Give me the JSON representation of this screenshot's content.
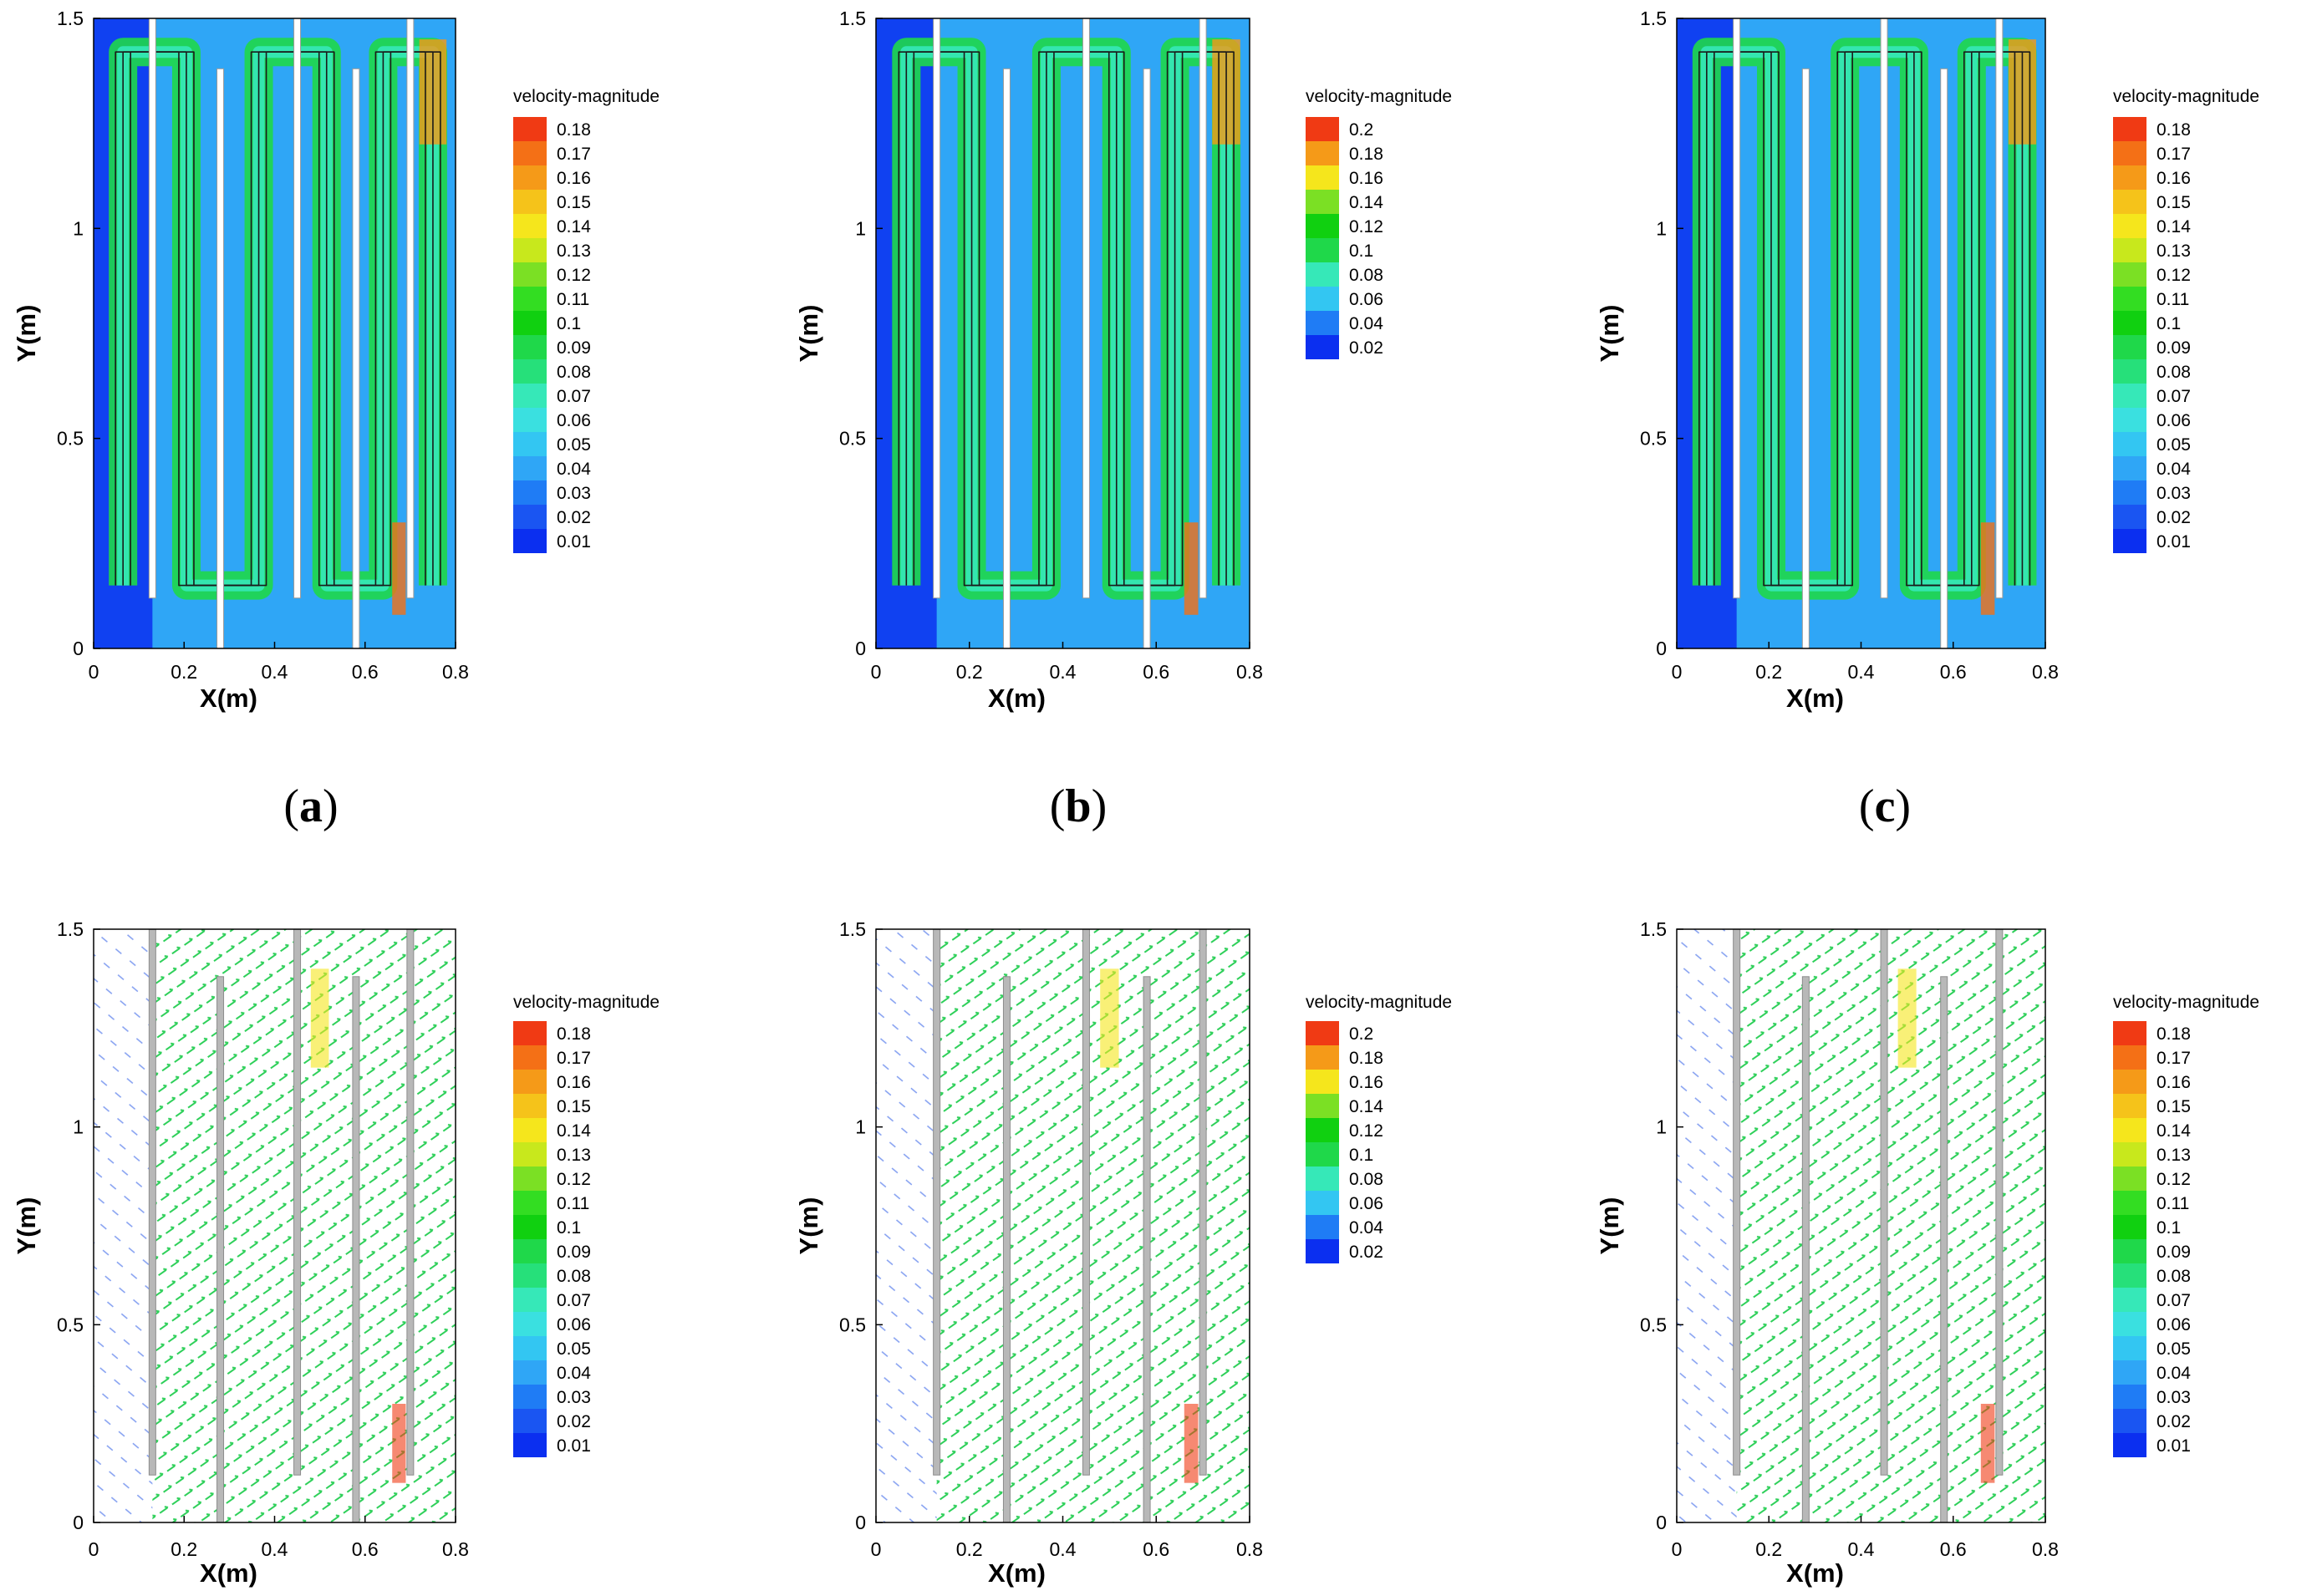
{
  "colors": {
    "scale": [
      "#0b2ff0",
      "#1a55f2",
      "#1f7cf5",
      "#2fa6f6",
      "#33c6f2",
      "#3ae0e0",
      "#36e8b8",
      "#26e07a",
      "#1fd84a",
      "#10d010",
      "#33dd22",
      "#7be024",
      "#c8e81c",
      "#f5e61c",
      "#f5c31a",
      "#f59a18",
      "#f47016",
      "#f03a14"
    ],
    "grey_wall": "#b8b8b8",
    "streamline": "#1a1a1a"
  },
  "chart_data": [
    {
      "id": "a",
      "type": "heatmap",
      "subtype": "contour-with-streamlines",
      "row": 0,
      "col": 0,
      "xlabel": "X(m)",
      "ylabel": "Y(m)",
      "xlim": [
        0,
        0.8
      ],
      "ylim": [
        0,
        1.5
      ],
      "xticks": [
        "0",
        "0.2",
        "0.4",
        "0.6",
        "0.8"
      ],
      "yticks": [
        "0",
        "0.5",
        "1",
        "1.5"
      ],
      "baffles": [
        0.13,
        0.28,
        0.45,
        0.58,
        0.7
      ],
      "legend": {
        "title": "velocity-magnitude",
        "levels": [
          "0.18",
          "0.17",
          "0.16",
          "0.15",
          "0.14",
          "0.13",
          "0.12",
          "0.11",
          "0.1",
          "0.09",
          "0.08",
          "0.07",
          "0.06",
          "0.05",
          "0.04",
          "0.03",
          "0.02",
          "0.01"
        ]
      }
    },
    {
      "id": "b",
      "type": "heatmap",
      "subtype": "contour-with-streamlines",
      "row": 0,
      "col": 1,
      "xlabel": "X(m)",
      "ylabel": "Y(m)",
      "xlim": [
        0,
        0.8
      ],
      "ylim": [
        0,
        1.5
      ],
      "xticks": [
        "0",
        "0.2",
        "0.4",
        "0.6",
        "0.8"
      ],
      "yticks": [
        "0",
        "0.5",
        "1",
        "1.5"
      ],
      "baffles": [
        0.13,
        0.28,
        0.45,
        0.58,
        0.7
      ],
      "legend": {
        "title": "velocity-magnitude",
        "levels": [
          "0.2",
          "0.18",
          "0.16",
          "0.14",
          "0.12",
          "0.1",
          "0.08",
          "0.06",
          "0.04",
          "0.02"
        ]
      }
    },
    {
      "id": "c",
      "type": "heatmap",
      "subtype": "contour-with-streamlines",
      "row": 0,
      "col": 2,
      "xlabel": "X(m)",
      "ylabel": "Y(m)",
      "xlim": [
        0,
        0.8
      ],
      "ylim": [
        0,
        1.5
      ],
      "xticks": [
        "0",
        "0.2",
        "0.4",
        "0.6",
        "0.8"
      ],
      "yticks": [
        "0",
        "0.5",
        "1",
        "1.5"
      ],
      "baffles": [
        0.13,
        0.28,
        0.45,
        0.58,
        0.7
      ],
      "legend": {
        "title": "velocity-magnitude",
        "levels": [
          "0.18",
          "0.17",
          "0.16",
          "0.15",
          "0.14",
          "0.13",
          "0.12",
          "0.11",
          "0.1",
          "0.09",
          "0.08",
          "0.07",
          "0.06",
          "0.05",
          "0.04",
          "0.03",
          "0.02",
          "0.01"
        ]
      }
    },
    {
      "id": "d",
      "type": "heatmap",
      "subtype": "velocity-vectors",
      "row": 1,
      "col": 0,
      "xlabel": "X(m)",
      "ylabel": "Y(m)",
      "xlim": [
        0,
        0.8
      ],
      "ylim": [
        0,
        1.5
      ],
      "xticks": [
        "0",
        "0.2",
        "0.4",
        "0.6",
        "0.8"
      ],
      "yticks": [
        "0",
        "0.5",
        "1",
        "1.5"
      ],
      "baffles": [
        0.13,
        0.28,
        0.45,
        0.58,
        0.7
      ],
      "legend": {
        "title": "velocity-magnitude",
        "levels": [
          "0.18",
          "0.17",
          "0.16",
          "0.15",
          "0.14",
          "0.13",
          "0.12",
          "0.11",
          "0.1",
          "0.09",
          "0.08",
          "0.07",
          "0.06",
          "0.05",
          "0.04",
          "0.03",
          "0.02",
          "0.01"
        ]
      }
    },
    {
      "id": "e",
      "type": "heatmap",
      "subtype": "velocity-vectors",
      "row": 1,
      "col": 1,
      "xlabel": "X(m)",
      "ylabel": "Y(m)",
      "xlim": [
        0,
        0.8
      ],
      "ylim": [
        0,
        1.5
      ],
      "xticks": [
        "0",
        "0.2",
        "0.4",
        "0.6",
        "0.8"
      ],
      "yticks": [
        "0",
        "0.5",
        "1",
        "1.5"
      ],
      "baffles": [
        0.13,
        0.28,
        0.45,
        0.58,
        0.7
      ],
      "legend": {
        "title": "velocity-magnitude",
        "levels": [
          "0.2",
          "0.18",
          "0.16",
          "0.14",
          "0.12",
          "0.1",
          "0.08",
          "0.06",
          "0.04",
          "0.02"
        ]
      }
    },
    {
      "id": "f",
      "type": "heatmap",
      "subtype": "velocity-vectors",
      "row": 1,
      "col": 2,
      "xlabel": "X(m)",
      "ylabel": "Y(m)",
      "xlim": [
        0,
        0.8
      ],
      "ylim": [
        0,
        1.5
      ],
      "xticks": [
        "0",
        "0.2",
        "0.4",
        "0.6",
        "0.8"
      ],
      "yticks": [
        "0",
        "0.5",
        "1",
        "1.5"
      ],
      "baffles": [
        0.13,
        0.28,
        0.45,
        0.58,
        0.7
      ],
      "legend": {
        "title": "velocity-magnitude",
        "levels": [
          "0.18",
          "0.17",
          "0.16",
          "0.15",
          "0.14",
          "0.13",
          "0.12",
          "0.11",
          "0.1",
          "0.09",
          "0.08",
          "0.07",
          "0.06",
          "0.05",
          "0.04",
          "0.03",
          "0.02",
          "0.01"
        ]
      }
    }
  ],
  "subfigure_labels": [
    {
      "open": "(",
      "letter": "a",
      "close": ")"
    },
    {
      "open": "(",
      "letter": "b",
      "close": ")"
    },
    {
      "open": "(",
      "letter": "c",
      "close": ")"
    }
  ]
}
